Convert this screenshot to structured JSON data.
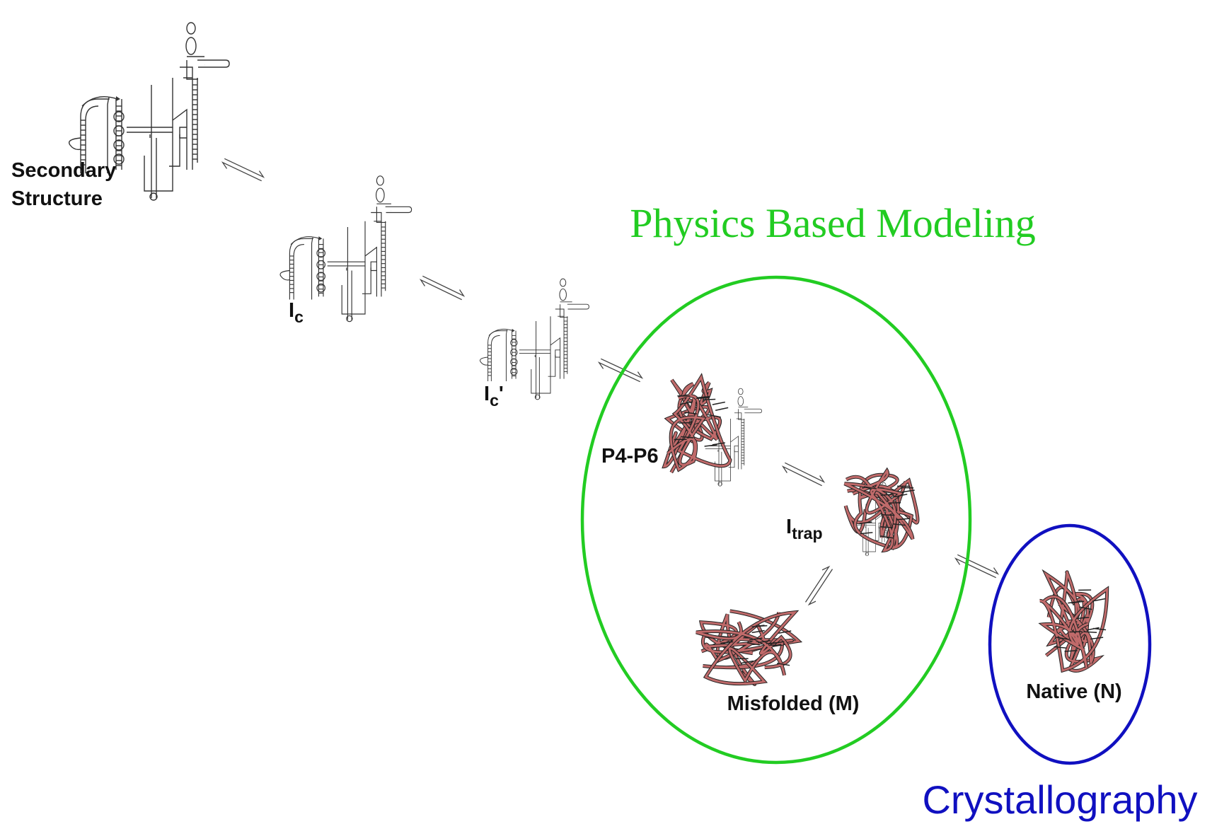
{
  "nodes": [
    {
      "lines": [
        "Secondary",
        "Structure"
      ]
    },
    {
      "label": "I",
      "subscript": "c"
    },
    {
      "label": "I",
      "subscript": "c",
      "suffix": "'"
    },
    {
      "label": "P4-P6"
    },
    {
      "label": "I",
      "subscript": "trap"
    },
    {
      "label": "Misfolded (M)"
    },
    {
      "label": "Native (N)"
    }
  ],
  "regions": [
    {
      "label": "Physics Based Modeling",
      "color": "#22cc22"
    },
    {
      "label": "Crystallography",
      "color": "#1010c0"
    }
  ]
}
